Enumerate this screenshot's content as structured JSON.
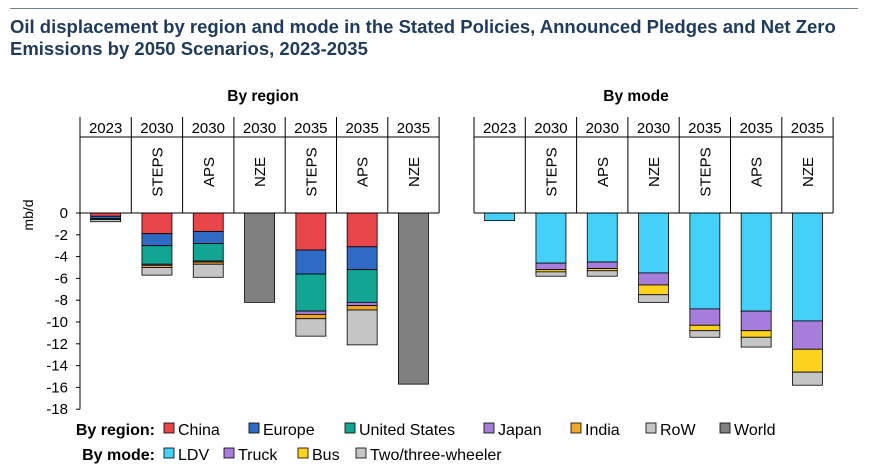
{
  "title": "Oil displacement by region and mode in the Stated Policies, Announced Pledges and Net Zero Emissions by 2050 Scenarios, 2023-2035",
  "chart_data": [
    {
      "type": "bar",
      "stacked": true,
      "subtitle": "By region",
      "ylabel": "mb/d",
      "ylim": [
        -18,
        0
      ],
      "yticks": [
        0,
        -2,
        -4,
        -6,
        -8,
        -10,
        -12,
        -14,
        -16,
        -18
      ],
      "categories": [
        {
          "year": "2023",
          "scenario": ""
        },
        {
          "year": "2030",
          "scenario": "STEPS"
        },
        {
          "year": "2030",
          "scenario": "APS"
        },
        {
          "year": "2030",
          "scenario": "NZE"
        },
        {
          "year": "2035",
          "scenario": "STEPS"
        },
        {
          "year": "2035",
          "scenario": "APS"
        },
        {
          "year": "2035",
          "scenario": "NZE"
        }
      ],
      "series": [
        {
          "name": "China",
          "color": "#e8464b",
          "values": [
            -0.3,
            -1.9,
            -1.7,
            0,
            -3.4,
            -3.1,
            0
          ]
        },
        {
          "name": "Europe",
          "color": "#2f6bc4",
          "values": [
            -0.2,
            -1.1,
            -1.1,
            0,
            -2.2,
            -2.1,
            0
          ]
        },
        {
          "name": "United States",
          "color": "#12a594",
          "values": [
            -0.1,
            -1.7,
            -1.6,
            0,
            -3.4,
            -3.0,
            0
          ]
        },
        {
          "name": "Japan",
          "color": "#a67ddb",
          "values": [
            0,
            -0.1,
            -0.1,
            0,
            -0.3,
            -0.3,
            0
          ]
        },
        {
          "name": "India",
          "color": "#f0a52b",
          "values": [
            0,
            -0.2,
            -0.2,
            0,
            -0.4,
            -0.4,
            0
          ]
        },
        {
          "name": "RoW",
          "color": "#c5c5c5",
          "values": [
            -0.2,
            -0.7,
            -1.2,
            0,
            -1.6,
            -3.2,
            0
          ]
        },
        {
          "name": "World",
          "color": "#808080",
          "values": [
            0,
            0,
            0,
            -8.2,
            0,
            0,
            -15.7
          ]
        }
      ]
    },
    {
      "type": "bar",
      "stacked": true,
      "subtitle": "By mode",
      "ylim": [
        -18,
        0
      ],
      "categories": [
        {
          "year": "2023",
          "scenario": ""
        },
        {
          "year": "2030",
          "scenario": "STEPS"
        },
        {
          "year": "2030",
          "scenario": "APS"
        },
        {
          "year": "2030",
          "scenario": "NZE"
        },
        {
          "year": "2035",
          "scenario": "STEPS"
        },
        {
          "year": "2035",
          "scenario": "APS"
        },
        {
          "year": "2035",
          "scenario": "NZE"
        }
      ],
      "series": [
        {
          "name": "LDV",
          "color": "#45d0f7",
          "values": [
            -0.7,
            -4.6,
            -4.5,
            -5.5,
            -8.8,
            -9.0,
            -9.9
          ]
        },
        {
          "name": "Truck",
          "color": "#a67ddb",
          "values": [
            0,
            -0.6,
            -0.6,
            -1.1,
            -1.5,
            -1.8,
            -2.6
          ]
        },
        {
          "name": "Bus",
          "color": "#fcd21c",
          "values": [
            0,
            -0.2,
            -0.2,
            -0.9,
            -0.5,
            -0.6,
            -2.1
          ]
        },
        {
          "name": "Two/three-wheeler",
          "color": "#c5c5c5",
          "values": [
            0,
            -0.4,
            -0.5,
            -0.7,
            -0.6,
            -0.9,
            -1.2
          ]
        }
      ]
    }
  ],
  "legend": {
    "region_label": "By region:",
    "mode_label": "By mode:",
    "region_items": [
      {
        "label": "China",
        "color": "#e8464b"
      },
      {
        "label": "Europe",
        "color": "#2f6bc4"
      },
      {
        "label": "United States",
        "color": "#12a594"
      },
      {
        "label": "Japan",
        "color": "#a67ddb"
      },
      {
        "label": "India",
        "color": "#f0a52b"
      },
      {
        "label": "RoW",
        "color": "#c5c5c5"
      },
      {
        "label": "World",
        "color": "#808080"
      }
    ],
    "mode_items": [
      {
        "label": "LDV",
        "color": "#45d0f7"
      },
      {
        "label": "Truck",
        "color": "#a67ddb"
      },
      {
        "label": "Bus",
        "color": "#fcd21c"
      },
      {
        "label": "Two/three-wheeler",
        "color": "#c5c5c5"
      }
    ]
  }
}
